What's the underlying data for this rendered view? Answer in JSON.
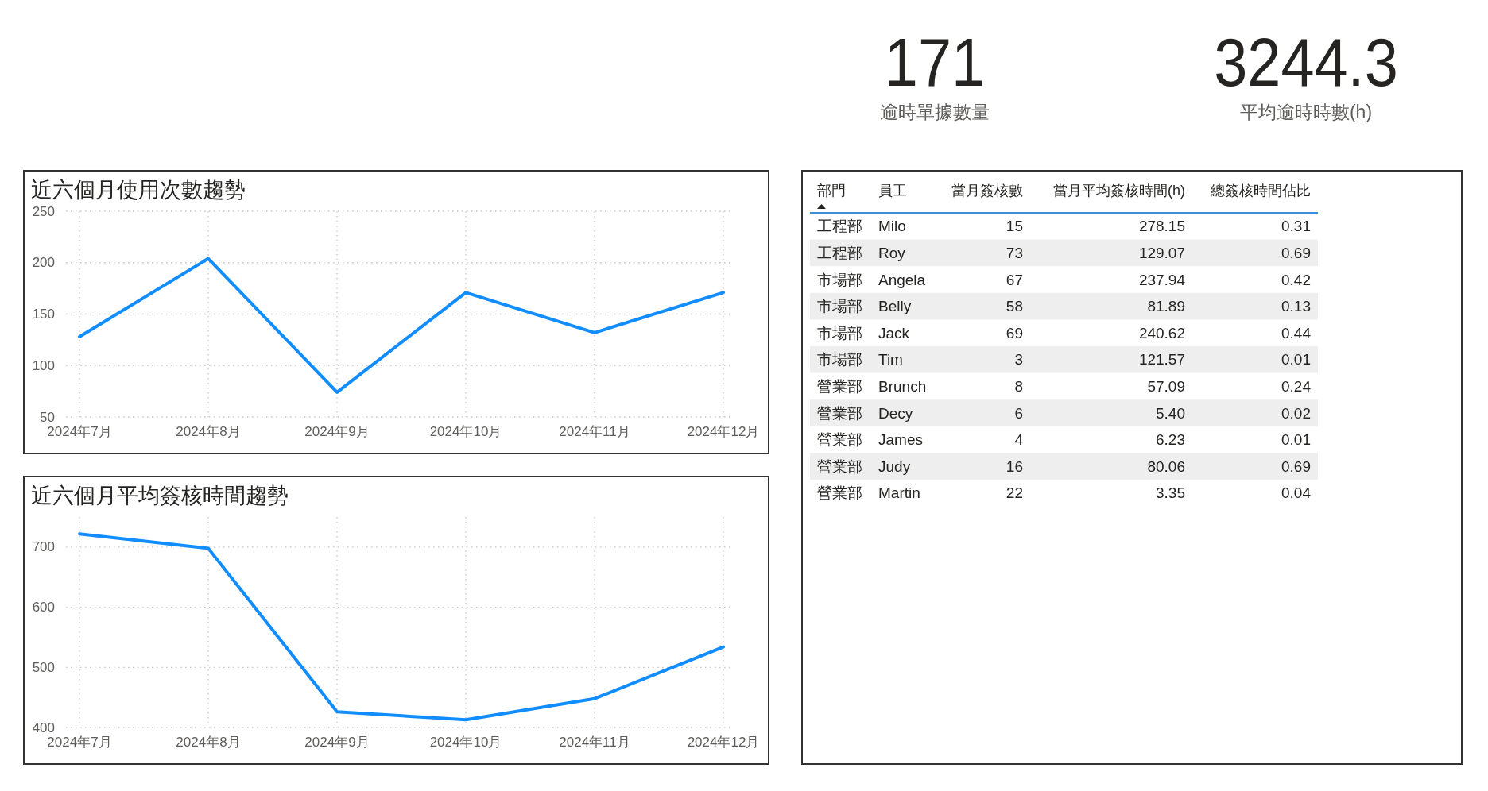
{
  "chart_data": [
    {
      "type": "other",
      "annotations": [
        "171",
        "逾時單據數量"
      ]
    },
    {
      "type": "other",
      "annotations": [
        "3244.3",
        "平均逾時時數(h)"
      ]
    },
    {
      "type": "line",
      "title": "近六個月使用次數趨勢",
      "categories": [
        "2024年7月",
        "2024年8月",
        "2024年9月",
        "2024年10月",
        "2024年11月",
        "2024年12月"
      ],
      "series": [
        {
          "color": "#118dff",
          "values": [
            128,
            204,
            74,
            171,
            132,
            171
          ]
        }
      ],
      "ylim": [
        50,
        250
      ],
      "yticks": [
        50,
        100,
        150,
        200,
        250
      ],
      "grid": true,
      "line_style": "solid"
    },
    {
      "type": "line",
      "title": "近六個月平均簽核時間趨勢",
      "categories": [
        "2024年7月",
        "2024年8月",
        "2024年9月",
        "2024年10月",
        "2024年11月",
        "2024年12月"
      ],
      "series": [
        {
          "color": "#118dff",
          "values": [
            722,
            698,
            426,
            413,
            448,
            534
          ]
        }
      ],
      "ylim": [
        400,
        750
      ],
      "yticks": [
        400,
        500,
        600,
        700
      ],
      "grid": true,
      "line_style": "solid"
    },
    {
      "type": "other",
      "categories": [
        "部門",
        "員工",
        "當月簽核數",
        "當月平均簽核時間(h)",
        "總簽核時間佔比"
      ],
      "annotations": [
        "工程部",
        "Milo",
        "15",
        "278.15",
        "0.31",
        "工程部",
        "Roy",
        "73",
        "129.07",
        "0.69",
        "市場部",
        "Angela",
        "67",
        "237.94",
        "0.42",
        "市場部",
        "Belly",
        "58",
        "81.89",
        "0.13",
        "市場部",
        "Jack",
        "69",
        "240.62",
        "0.44",
        "市場部",
        "Tim",
        "3",
        "121.57",
        "0.01",
        "營業部",
        "Brunch",
        "8",
        "57.09",
        "0.24",
        "營業部",
        "Decy",
        "6",
        "5.40",
        "0.02",
        "營業部",
        "James",
        "4",
        "6.23",
        "0.01",
        "營業部",
        "Judy",
        "16",
        "80.06",
        "0.69",
        "營業部",
        "Martin",
        "22",
        "3.35",
        "0.04"
      ]
    }
  ]
}
